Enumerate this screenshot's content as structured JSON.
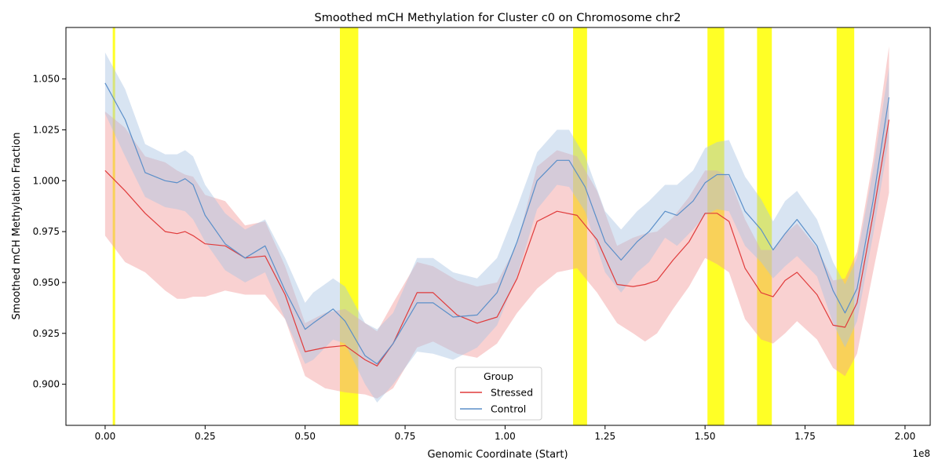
{
  "chart_data": {
    "type": "line",
    "title": "Smoothed mCH Methylation for Cluster c0 on Chromosome chr2",
    "xlabel": "Genomic Coordinate (Start)",
    "ylabel": "Smoothed mCH Methylation Fraction",
    "x_offset_label": "1e8",
    "x_scale": 100000000,
    "xlim": [
      -0.098,
      2.063
    ],
    "ylim": [
      0.8798,
      1.0753
    ],
    "x_ticks": [
      0.0,
      0.25,
      0.5,
      0.75,
      1.0,
      1.25,
      1.5,
      1.75,
      2.0
    ],
    "x_tick_labels": [
      "0.00",
      "0.25",
      "0.50",
      "0.75",
      "1.00",
      "1.25",
      "1.50",
      "1.75",
      "2.00"
    ],
    "y_ticks": [
      0.9,
      0.925,
      0.95,
      0.975,
      1.0,
      1.025,
      1.05
    ],
    "y_tick_labels": [
      "0.900",
      "0.925",
      "0.950",
      "0.975",
      "1.000",
      "1.025",
      "1.050"
    ],
    "grid": false,
    "legend": {
      "title": "Group",
      "placement": "lower center",
      "entries": [
        {
          "label": "Stressed",
          "color": "#e03b3b"
        },
        {
          "label": "Control",
          "color": "#5b8fc9"
        }
      ]
    },
    "highlight_regions": [
      {
        "x0": 0.019,
        "x1": 0.025
      },
      {
        "x0": 0.587,
        "x1": 0.633
      },
      {
        "x0": 1.17,
        "x1": 1.205
      },
      {
        "x0": 1.506,
        "x1": 1.548
      },
      {
        "x0": 1.63,
        "x1": 1.667
      },
      {
        "x0": 1.829,
        "x1": 1.873
      }
    ],
    "highlight_color": "#ffff00",
    "series": [
      {
        "name": "Stressed",
        "color": "#e03b3b",
        "band_color": "#f29a9a",
        "x": [
          0.0,
          0.05,
          0.1,
          0.15,
          0.18,
          0.2,
          0.22,
          0.25,
          0.3,
          0.35,
          0.4,
          0.45,
          0.5,
          0.55,
          0.6,
          0.65,
          0.68,
          0.72,
          0.78,
          0.82,
          0.88,
          0.93,
          0.98,
          1.03,
          1.08,
          1.13,
          1.18,
          1.23,
          1.28,
          1.32,
          1.35,
          1.38,
          1.42,
          1.46,
          1.5,
          1.53,
          1.56,
          1.6,
          1.64,
          1.67,
          1.7,
          1.73,
          1.78,
          1.82,
          1.85,
          1.88,
          1.92,
          1.96
        ],
        "y": [
          1.005,
          0.995,
          0.984,
          0.975,
          0.974,
          0.975,
          0.973,
          0.969,
          0.968,
          0.962,
          0.963,
          0.944,
          0.916,
          0.918,
          0.919,
          0.912,
          0.909,
          0.92,
          0.945,
          0.945,
          0.934,
          0.93,
          0.933,
          0.952,
          0.98,
          0.985,
          0.983,
          0.971,
          0.949,
          0.948,
          0.949,
          0.951,
          0.961,
          0.97,
          0.984,
          0.984,
          0.98,
          0.957,
          0.945,
          0.943,
          0.951,
          0.955,
          0.944,
          0.929,
          0.928,
          0.94,
          0.983,
          1.03
        ],
        "lower": [
          0.973,
          0.96,
          0.955,
          0.946,
          0.942,
          0.942,
          0.943,
          0.943,
          0.946,
          0.944,
          0.944,
          0.932,
          0.904,
          0.898,
          0.896,
          0.895,
          0.893,
          0.898,
          0.918,
          0.921,
          0.915,
          0.913,
          0.92,
          0.935,
          0.947,
          0.955,
          0.957,
          0.945,
          0.93,
          0.925,
          0.921,
          0.925,
          0.937,
          0.948,
          0.962,
          0.959,
          0.955,
          0.932,
          0.922,
          0.92,
          0.925,
          0.931,
          0.922,
          0.908,
          0.904,
          0.915,
          0.955,
          0.994
        ],
        "upper": [
          1.034,
          1.026,
          1.012,
          1.009,
          1.005,
          1.003,
          1.002,
          0.993,
          0.99,
          0.978,
          0.98,
          0.958,
          0.93,
          0.935,
          0.937,
          0.93,
          0.926,
          0.94,
          0.96,
          0.958,
          0.951,
          0.948,
          0.95,
          0.969,
          1.007,
          1.015,
          1.012,
          0.995,
          0.968,
          0.972,
          0.974,
          0.975,
          0.982,
          0.992,
          1.005,
          1.005,
          1.002,
          0.981,
          0.966,
          0.966,
          0.974,
          0.979,
          0.967,
          0.951,
          0.952,
          0.965,
          1.01,
          1.066
        ]
      },
      {
        "name": "Control",
        "color": "#5b8fc9",
        "band_color": "#a9c4e2",
        "x": [
          0.0,
          0.05,
          0.1,
          0.15,
          0.18,
          0.2,
          0.22,
          0.25,
          0.3,
          0.35,
          0.4,
          0.45,
          0.5,
          0.52,
          0.57,
          0.6,
          0.65,
          0.68,
          0.72,
          0.78,
          0.82,
          0.87,
          0.93,
          0.98,
          1.03,
          1.08,
          1.13,
          1.16,
          1.2,
          1.25,
          1.29,
          1.33,
          1.36,
          1.4,
          1.43,
          1.47,
          1.5,
          1.53,
          1.56,
          1.6,
          1.64,
          1.67,
          1.7,
          1.73,
          1.78,
          1.82,
          1.85,
          1.88,
          1.92,
          1.96
        ],
        "y": [
          1.048,
          1.03,
          1.004,
          1.0,
          0.999,
          1.001,
          0.998,
          0.983,
          0.969,
          0.962,
          0.968,
          0.946,
          0.927,
          0.93,
          0.937,
          0.931,
          0.914,
          0.91,
          0.92,
          0.94,
          0.94,
          0.933,
          0.934,
          0.945,
          0.97,
          1.0,
          1.01,
          1.01,
          0.997,
          0.97,
          0.961,
          0.97,
          0.975,
          0.985,
          0.983,
          0.99,
          0.999,
          1.003,
          1.003,
          0.985,
          0.976,
          0.966,
          0.974,
          0.981,
          0.968,
          0.946,
          0.935,
          0.947,
          0.99,
          1.041
        ],
        "lower": [
          1.033,
          1.012,
          0.992,
          0.987,
          0.986,
          0.985,
          0.981,
          0.97,
          0.956,
          0.95,
          0.955,
          0.932,
          0.91,
          0.912,
          0.922,
          0.92,
          0.9,
          0.891,
          0.9,
          0.916,
          0.915,
          0.912,
          0.918,
          0.929,
          0.953,
          0.986,
          0.998,
          0.997,
          0.985,
          0.955,
          0.945,
          0.955,
          0.96,
          0.972,
          0.968,
          0.976,
          0.983,
          0.986,
          0.985,
          0.968,
          0.96,
          0.952,
          0.958,
          0.963,
          0.953,
          0.93,
          0.918,
          0.931,
          0.973,
          1.021
        ],
        "upper": [
          1.063,
          1.045,
          1.018,
          1.013,
          1.013,
          1.015,
          1.012,
          0.998,
          0.984,
          0.976,
          0.981,
          0.962,
          0.94,
          0.945,
          0.952,
          0.948,
          0.93,
          0.927,
          0.935,
          0.962,
          0.962,
          0.955,
          0.952,
          0.962,
          0.987,
          1.014,
          1.025,
          1.025,
          1.012,
          0.985,
          0.976,
          0.985,
          0.99,
          0.998,
          0.998,
          1.005,
          1.016,
          1.019,
          1.02,
          1.002,
          0.991,
          0.98,
          0.99,
          0.995,
          0.981,
          0.96,
          0.949,
          0.962,
          1.005,
          1.056
        ]
      }
    ]
  }
}
